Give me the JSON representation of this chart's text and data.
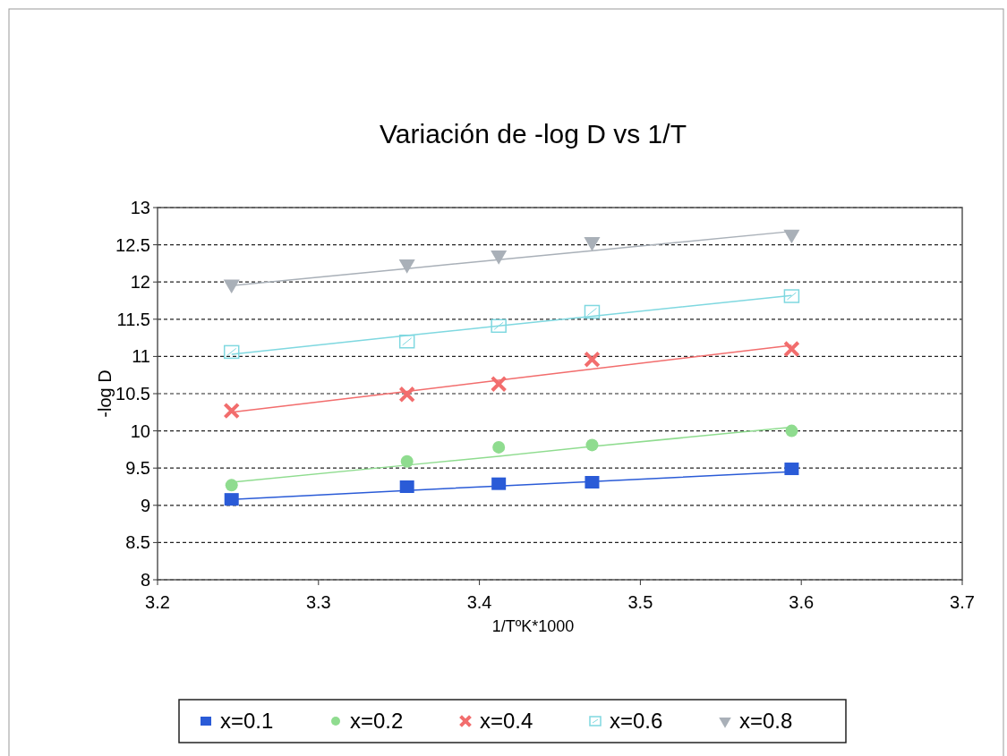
{
  "chart_data": {
    "type": "scatter",
    "title": "Variación de -log D vs 1/T",
    "xlabel": "1/TºK*1000",
    "ylabel": "-log D",
    "x": [
      3.246,
      3.355,
      3.412,
      3.47,
      3.594
    ],
    "xlim": [
      3.2,
      3.7
    ],
    "xticks": [
      3.2,
      3.3,
      3.4,
      3.5,
      3.6,
      3.7
    ],
    "ylim": [
      8,
      13
    ],
    "yticks": [
      8,
      8.5,
      9,
      9.5,
      10,
      10.5,
      11,
      11.5,
      12,
      12.5,
      13
    ],
    "grid": "y",
    "legend": "bottom",
    "series": [
      {
        "name": "x=0.1",
        "color": "#2a5bd7",
        "marker": "square",
        "values": [
          9.08,
          9.25,
          9.29,
          9.31,
          9.49
        ]
      },
      {
        "name": "x=0.2",
        "color": "#8fdc8f",
        "marker": "circle",
        "values": [
          9.27,
          9.59,
          9.78,
          9.81,
          10.0
        ]
      },
      {
        "name": "x=0.4",
        "color": "#f26d6d",
        "marker": "cross",
        "values": [
          10.27,
          10.49,
          10.63,
          10.96,
          11.1
        ]
      },
      {
        "name": "x=0.6",
        "color": "#7fd8e0",
        "marker": "square",
        "values": [
          11.06,
          11.2,
          11.41,
          11.6,
          11.81
        ]
      },
      {
        "name": "x=0.8",
        "color": "#a9b0b8",
        "marker": "triangle",
        "values": [
          11.97,
          12.24,
          12.36,
          12.54,
          12.64
        ]
      },
      {
        "type": "line",
        "color": "#2a5bd7",
        "marker": "none",
        "values": [
          9.08,
          9.2,
          9.26,
          9.32,
          9.45
        ]
      },
      {
        "type": "line",
        "color": "#8fdc8f",
        "marker": "none",
        "values": [
          9.31,
          9.54,
          9.66,
          9.79,
          10.05
        ]
      },
      {
        "type": "line",
        "color": "#f26d6d",
        "marker": "none",
        "values": [
          10.25,
          10.53,
          10.68,
          10.83,
          11.15
        ]
      },
      {
        "type": "line",
        "color": "#7fd8e0",
        "marker": "none",
        "values": [
          11.03,
          11.28,
          11.41,
          11.54,
          11.82
        ]
      },
      {
        "type": "line",
        "color": "#a9b0b8",
        "marker": "none",
        "values": [
          11.95,
          12.18,
          12.3,
          12.42,
          12.68
        ]
      }
    ]
  }
}
